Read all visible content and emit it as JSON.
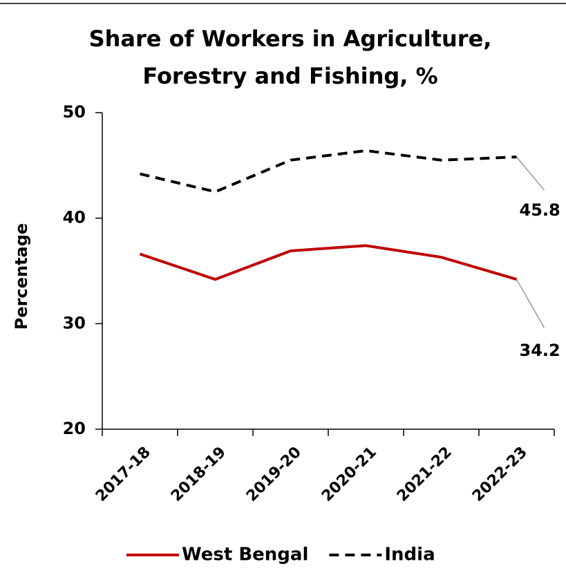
{
  "chart_data": {
    "type": "line",
    "title": [
      "Share of Workers in Agriculture,",
      "Forestry and Fishing, %"
    ],
    "y_label": "Percentage",
    "categories": [
      "2017-18",
      "2018-19",
      "2019-20",
      "2020-21",
      "2021-22",
      "2022-23"
    ],
    "series": [
      {
        "name": "West Bengal",
        "color": "#c00000",
        "dash": "solid",
        "values": [
          36.6,
          34.2,
          36.9,
          37.4,
          36.3,
          34.2
        ]
      },
      {
        "name": "India",
        "color": "#000000",
        "dash": "dashed",
        "values": [
          44.2,
          42.5,
          45.5,
          46.4,
          45.5,
          45.8
        ]
      }
    ],
    "ylim": [
      20,
      50
    ],
    "yticks": [
      20,
      30,
      40,
      50
    ],
    "legend": "bottom"
  }
}
